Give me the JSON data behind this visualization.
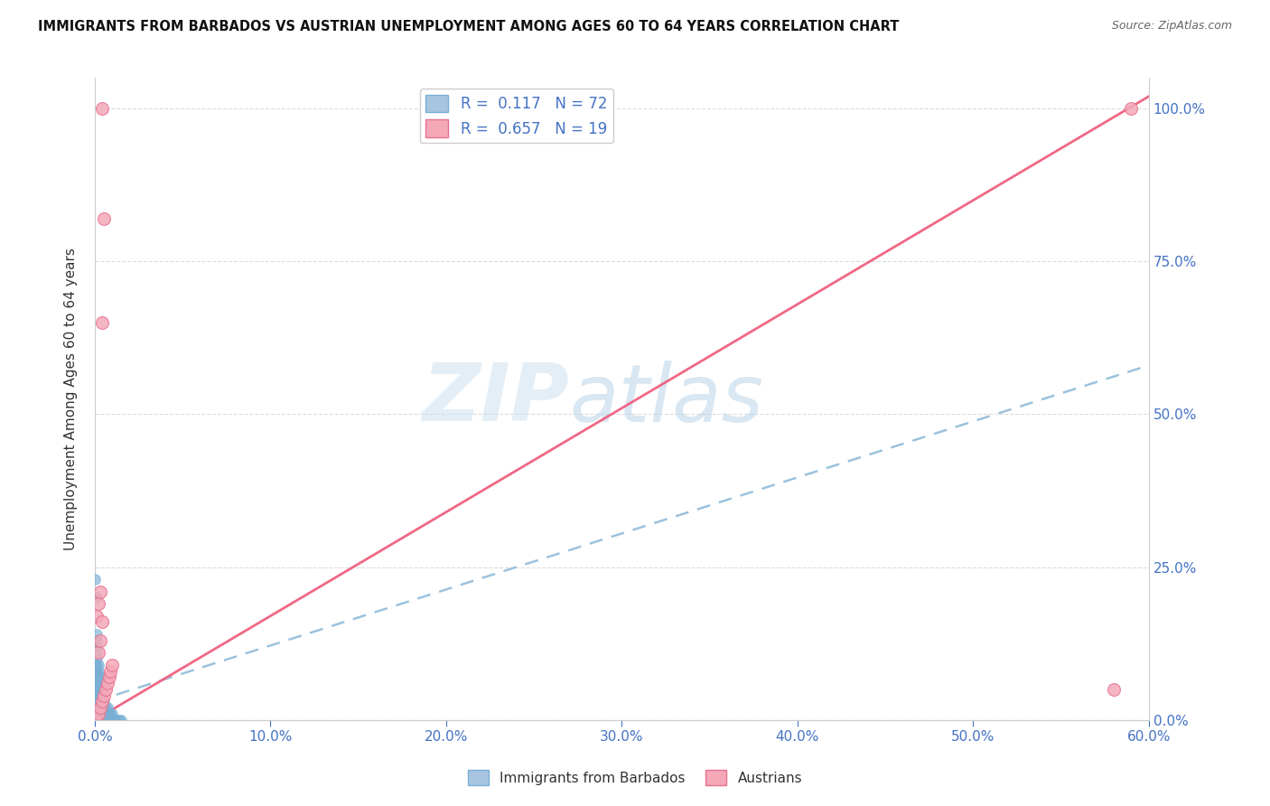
{
  "title": "IMMIGRANTS FROM BARBADOS VS AUSTRIAN UNEMPLOYMENT AMONG AGES 60 TO 64 YEARS CORRELATION CHART",
  "source": "Source: ZipAtlas.com",
  "ylabel": "Unemployment Among Ages 60 to 64 years",
  "legend_entry1": "R =  0.117   N = 72",
  "legend_entry2": "R =  0.657   N = 19",
  "legend_color1": "#a8c4e0",
  "legend_color2": "#f4a8b8",
  "trendline1_color": "#8ab8d8",
  "trendline2_color": "#f06080",
  "scatter1_color": "#7ab0d4",
  "scatter2_color": "#f4a8b8",
  "scatter2_edge_color": "#e87090",
  "watermark_zip": "ZIP",
  "watermark_atlas": "atlas",
  "xmin": 0.0,
  "xmax": 0.6,
  "ymin": 0.0,
  "ymax": 1.05,
  "blue_trendline_x0": 0.0,
  "blue_trendline_y0": 0.03,
  "blue_trendline_x1": 0.6,
  "blue_trendline_y1": 0.58,
  "pink_trendline_x0": 0.0,
  "pink_trendline_y0": 0.0,
  "pink_trendline_x1": 0.6,
  "pink_trendline_y1": 1.02,
  "blue_scatter_x": [
    0.0,
    0.0,
    0.0,
    0.0,
    0.0,
    0.0,
    0.0,
    0.0,
    0.0,
    0.0,
    0.001,
    0.001,
    0.001,
    0.001,
    0.001,
    0.001,
    0.001,
    0.001,
    0.001,
    0.001,
    0.001,
    0.001,
    0.001,
    0.001,
    0.001,
    0.002,
    0.002,
    0.002,
    0.002,
    0.002,
    0.002,
    0.002,
    0.002,
    0.002,
    0.002,
    0.003,
    0.003,
    0.003,
    0.003,
    0.003,
    0.003,
    0.003,
    0.003,
    0.004,
    0.004,
    0.004,
    0.004,
    0.004,
    0.004,
    0.005,
    0.005,
    0.005,
    0.005,
    0.006,
    0.006,
    0.006,
    0.007,
    0.007,
    0.007,
    0.008,
    0.008,
    0.009,
    0.009,
    0.01,
    0.01,
    0.011,
    0.012,
    0.013,
    0.014,
    0.015,
    0.0,
    0.001
  ],
  "blue_scatter_y": [
    0.0,
    0.01,
    0.02,
    0.03,
    0.04,
    0.05,
    0.06,
    0.07,
    0.08,
    0.09,
    0.0,
    0.01,
    0.02,
    0.03,
    0.04,
    0.05,
    0.06,
    0.07,
    0.08,
    0.09,
    0.1,
    0.11,
    0.12,
    0.13,
    0.14,
    0.0,
    0.01,
    0.02,
    0.03,
    0.04,
    0.05,
    0.06,
    0.07,
    0.08,
    0.09,
    0.0,
    0.01,
    0.02,
    0.03,
    0.04,
    0.05,
    0.06,
    0.07,
    0.0,
    0.01,
    0.02,
    0.03,
    0.04,
    0.05,
    0.0,
    0.01,
    0.02,
    0.03,
    0.0,
    0.01,
    0.02,
    0.0,
    0.01,
    0.02,
    0.0,
    0.01,
    0.0,
    0.01,
    0.0,
    0.01,
    0.0,
    0.0,
    0.0,
    0.0,
    0.0,
    0.23,
    0.2
  ],
  "pink_scatter_x": [
    0.001,
    0.002,
    0.003,
    0.004,
    0.005,
    0.006,
    0.007,
    0.008,
    0.009,
    0.01,
    0.001,
    0.002,
    0.003,
    0.004,
    0.005,
    0.002,
    0.003,
    0.004,
    0.58
  ],
  "pink_scatter_y": [
    0.0,
    0.01,
    0.02,
    0.03,
    0.04,
    0.05,
    0.06,
    0.07,
    0.08,
    0.09,
    0.17,
    0.19,
    0.21,
    0.65,
    0.82,
    0.11,
    0.13,
    0.16,
    0.05
  ],
  "pink_top_points_x": [
    0.004,
    0.59
  ],
  "pink_top_points_y": [
    1.0,
    1.0
  ]
}
